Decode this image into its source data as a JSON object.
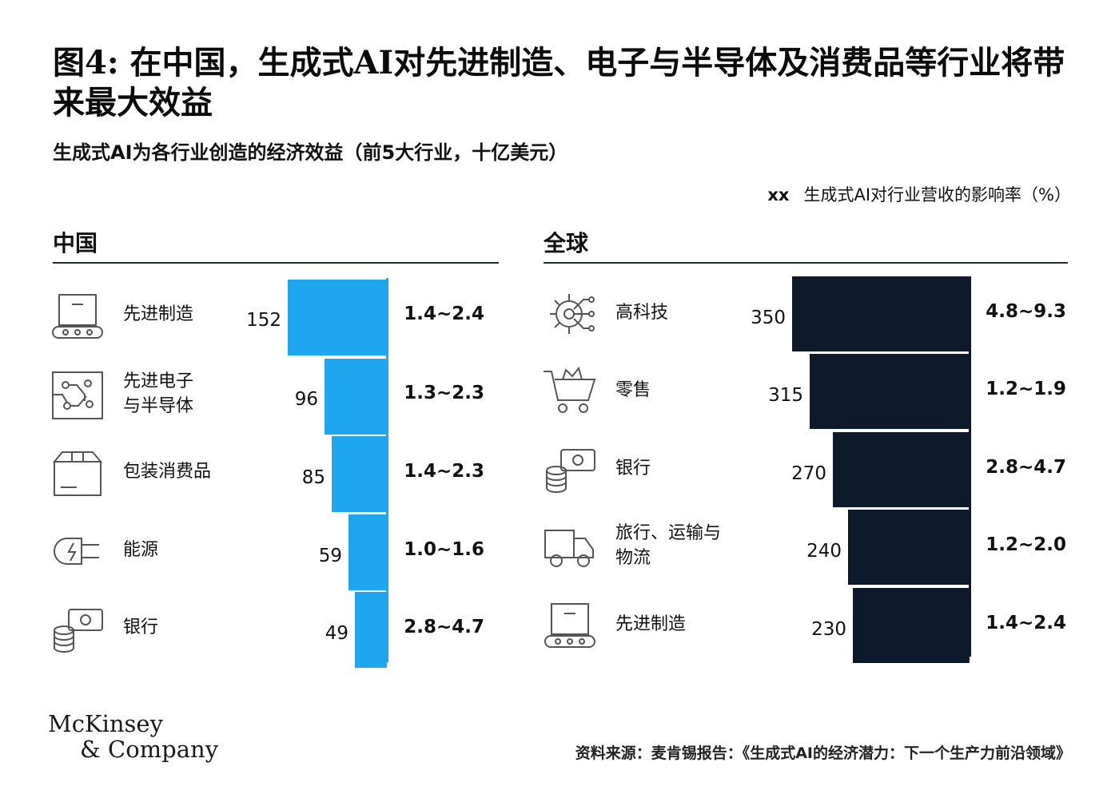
{
  "title": "图4: 在中国，生成式AI对先进制造、电子与半导体及消费品等行业将带来最大效益",
  "subtitle": "生成式AI为各行业创造的经济效益（前5大行业，十亿美元）",
  "legend": {
    "marker": "xx",
    "label": "生成式AI对行业营收的影响率（%）"
  },
  "logo": {
    "line1": "McKinsey",
    "line2": "& Company"
  },
  "source": "资料来源：麦肯锡报告：《生成式AI的经济潜力：下一个生产力前沿领域》",
  "colors": {
    "china_bar": "#1ea6ef",
    "global_bar": "#0c1a2b",
    "rule": "#1e2a38"
  },
  "chart_data": [
    {
      "type": "bar",
      "orientation": "horizontal",
      "panel": "中国",
      "categories": [
        "先进制造",
        "先进电子与半导体",
        "包装消费品",
        "能源",
        "银行"
      ],
      "label_lines": [
        [
          "先进制造"
        ],
        [
          "先进电子",
          "与半导体"
        ],
        [
          "包装消费品"
        ],
        [
          "能源"
        ],
        [
          "银行"
        ]
      ],
      "icons": [
        "factory-conveyor-icon",
        "circuit-board-icon",
        "package-box-icon",
        "power-plug-icon",
        "coins-banknote-icon"
      ],
      "values": [
        152,
        96,
        85,
        59,
        49
      ],
      "value_labels": [
        "152",
        "96",
        "85",
        "59",
        "49"
      ],
      "ranges": [
        "1.4~2.4",
        "1.3~2.3",
        "1.4~2.3",
        "1.0~1.6",
        "2.8~4.7"
      ],
      "color": "#1ea6ef"
    },
    {
      "type": "bar",
      "orientation": "horizontal",
      "panel": "全球",
      "categories": [
        "高科技",
        "零售",
        "银行",
        "旅行、运输与物流",
        "先进制造"
      ],
      "label_lines": [
        [
          "高科技"
        ],
        [
          "零售"
        ],
        [
          "银行"
        ],
        [
          "旅行、运输与",
          "物流"
        ],
        [
          "先进制造"
        ]
      ],
      "icons": [
        "gear-circuit-icon",
        "shopping-cart-icon",
        "coins-banknote-icon",
        "delivery-truck-icon",
        "factory-conveyor-icon"
      ],
      "values": [
        350,
        315,
        270,
        240,
        230
      ],
      "value_labels": [
        "350",
        "315",
        "270",
        "240",
        "230"
      ],
      "ranges": [
        "4.8~9.3",
        "1.2~1.9",
        "2.8~4.7",
        "1.2~2.0",
        "1.4~2.4"
      ],
      "color": "#0c1a2b"
    }
  ]
}
